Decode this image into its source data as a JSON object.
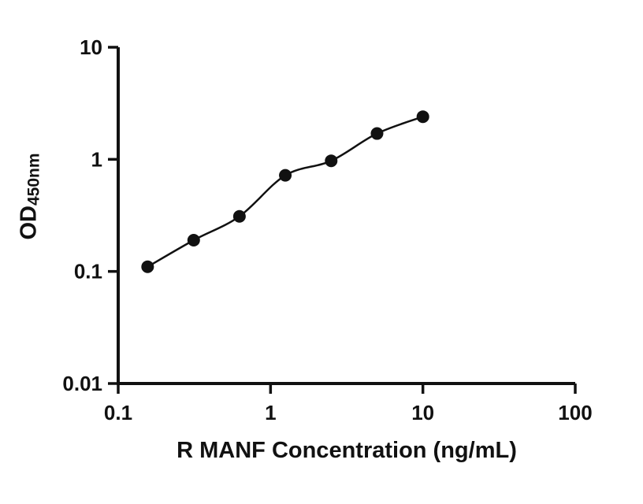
{
  "chart_data": {
    "type": "scatter",
    "title": "",
    "xlabel": "R MANF Concentration (ng/mL)",
    "ylabel_main": "OD",
    "ylabel_sub": "450nm",
    "xscale": "log",
    "yscale": "log",
    "xlim": [
      0.1,
      100
    ],
    "ylim": [
      0.01,
      10
    ],
    "x": [
      0.156,
      0.313,
      0.625,
      1.25,
      2.5,
      5,
      10
    ],
    "y": [
      0.11,
      0.19,
      0.31,
      0.72,
      0.97,
      1.7,
      2.4
    ],
    "x_ticks": {
      "values": [
        0.1,
        1,
        10,
        100
      ],
      "labels": [
        "0.1",
        "1",
        "10",
        "100"
      ]
    },
    "y_ticks": {
      "values": [
        10,
        1,
        0.1,
        0.01
      ],
      "labels": [
        "10",
        "1",
        "0.1",
        "0.01"
      ]
    },
    "grid": false,
    "legend": false,
    "line_color": "#111111",
    "marker_color": "#111111",
    "axis_color": "#111111",
    "marker_radius": 8,
    "curve_fit": "smooth through points"
  }
}
